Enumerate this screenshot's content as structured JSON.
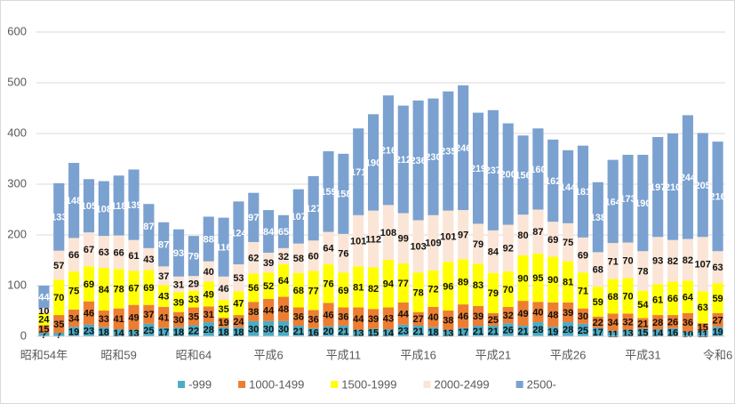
{
  "chart_data": {
    "type": "stacked_bar",
    "categories": [
      "昭和54年",
      null,
      null,
      null,
      null,
      "昭和59",
      null,
      null,
      null,
      null,
      "昭和64",
      null,
      null,
      null,
      null,
      "平成6",
      null,
      null,
      null,
      null,
      "平成11",
      null,
      null,
      null,
      null,
      "平成16",
      null,
      null,
      null,
      null,
      "平成21",
      null,
      null,
      null,
      null,
      "平成26",
      null,
      null,
      null,
      null,
      "平成31",
      null,
      null,
      null,
      null,
      "令和6"
    ],
    "series": [
      {
        "name": "-999",
        "color": "#4bacc6",
        "values": [
          7,
          7,
          19,
          23,
          18,
          14,
          13,
          25,
          17,
          18,
          22,
          28,
          18,
          18,
          30,
          30,
          30,
          21,
          16,
          20,
          21,
          13,
          15,
          14,
          23,
          21,
          18,
          13,
          17,
          21,
          21,
          26,
          21,
          28,
          19,
          28,
          25,
          17,
          11,
          13,
          15,
          14,
          16,
          10,
          11,
          19
        ]
      },
      {
        "name": "1000-1499",
        "color": "#ed7d31",
        "values": [
          15,
          35,
          34,
          46,
          33,
          41,
          49,
          37,
          41,
          30,
          35,
          31,
          19,
          24,
          38,
          44,
          48,
          36,
          36,
          46,
          36,
          44,
          39,
          43,
          44,
          27,
          40,
          38,
          46,
          39,
          25,
          32,
          49,
          40,
          48,
          39,
          30,
          22,
          34,
          32,
          21,
          28,
          26,
          36,
          15,
          27
        ]
      },
      {
        "name": "1500-1999",
        "color": "#ffff00",
        "values": [
          24,
          70,
          75,
          69,
          84,
          78,
          67,
          69,
          43,
          39,
          33,
          49,
          35,
          47,
          56,
          52,
          64,
          68,
          77,
          76,
          69,
          81,
          82,
          94,
          77,
          78,
          72,
          96,
          89,
          83,
          79,
          70,
          90,
          95,
          90,
          81,
          71,
          59,
          68,
          70,
          54,
          61,
          66,
          64,
          63,
          59
        ]
      },
      {
        "name": "2000-2499",
        "color": "#fbe5d6",
        "values": [
          10,
          57,
          66,
          67,
          63,
          66,
          61,
          43,
          37,
          31,
          29,
          40,
          46,
          53,
          62,
          39,
          32,
          58,
          60,
          64,
          76,
          101,
          112,
          108,
          99,
          103,
          109,
          101,
          97,
          79,
          84,
          92,
          80,
          87,
          69,
          75,
          69,
          68,
          71,
          70,
          78,
          93,
          82,
          82,
          107,
          63
        ]
      },
      {
        "name": "2500-",
        "color": "#7ba1d0",
        "values": [
          44,
          133,
          148,
          105,
          108,
          118,
          139,
          87,
          87,
          93,
          79,
          88,
          116,
          124,
          97,
          84,
          65,
          107,
          127,
          159,
          158,
          171,
          190,
          216,
          212,
          236,
          230,
          235,
          246,
          219,
          237,
          200,
          156,
          160,
          162,
          144,
          181,
          138,
          164,
          173,
          190,
          197,
          210,
          244,
          205,
          216
        ]
      }
    ],
    "ylim": [
      0,
      600
    ],
    "yticks": [
      0,
      100,
      200,
      300,
      400,
      500,
      600
    ],
    "grid": true,
    "legend": "bottom"
  }
}
